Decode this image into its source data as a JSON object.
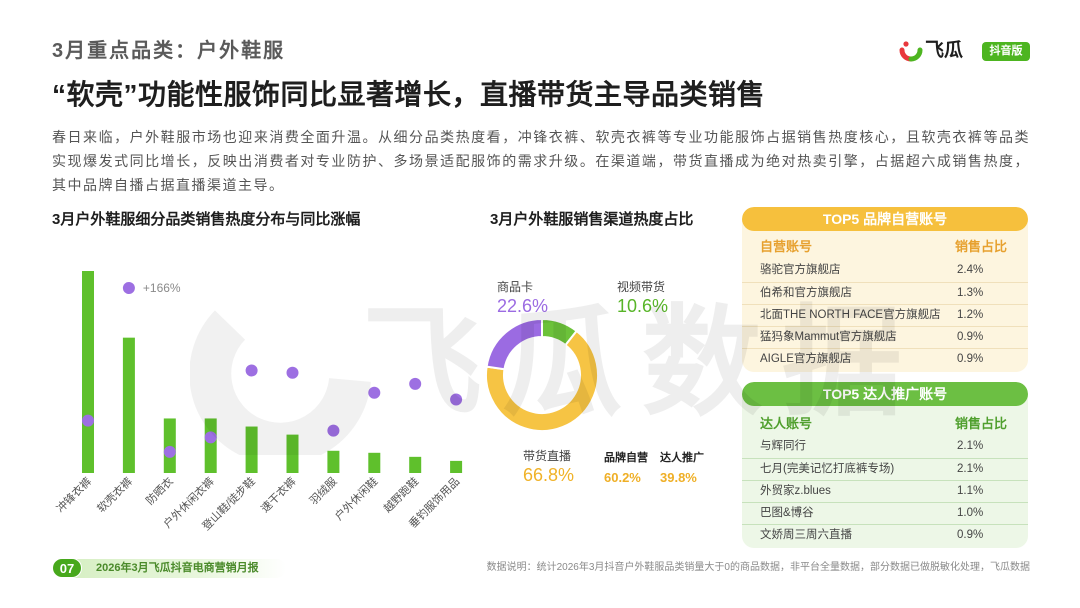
{
  "header": {
    "section": "3月重点品类：户外鞋服",
    "title": "“软壳”功能性服饰同比显著增长，直播带货主导品类销售",
    "summary": "春日来临，户外鞋服市场也迎来消费全面升温。从细分品类热度看，冲锋衣裤、软壳衣裤等专业功能服饰占据销售热度核心，且软壳衣裤等品类实现爆发式同比增长，反映出消费者对专业防护、多场景适配服饰的需求升级。在渠道端，带货直播成为绝对热卖引擎，占据超六成销售热度，其中品牌自播占据直播渠道主导。"
  },
  "logo": {
    "name": "飞瓜",
    "badge": "抖音版",
    "icon": "feigua-logo-icon"
  },
  "watermark": {
    "text": "飞瓜数据",
    "icon": "feigua-logo-icon"
  },
  "colors": {
    "bar": "#5fc02c",
    "dot": "#9d6fe2",
    "brand_accent": "#f6c03d",
    "kol_accent": "#6cbf43",
    "page_badge": "#47a81c"
  },
  "chart_data": [
    {
      "type": "bar",
      "title": "3月户外鞋服细分品类销售热度分布与同比涨幅",
      "categories": [
        "冲锋衣裤",
        "软壳衣裤",
        "防晒衣",
        "户外休闲衣裤",
        "登山鞋/徒步鞋",
        "速干衣裤",
        "羽绒服",
        "户外休闲鞋",
        "越野跑鞋",
        "垂钓服饰用品"
      ],
      "series": [
        {
          "type": "bar",
          "values": [
            100,
            67,
            27,
            27,
            23,
            19,
            11,
            10,
            8,
            6
          ]
        },
        {
          "type": "scatter",
          "values": [
            47,
            166,
            19,
            32,
            92,
            90,
            38,
            72,
            80,
            66
          ],
          "labels": [
            "",
            "+166%",
            "",
            "",
            "",
            "",
            "",
            "",
            "",
            ""
          ]
        }
      ],
      "xlabel": "",
      "ylabel": "",
      "grid": false,
      "legend": "none"
    },
    {
      "type": "pie",
      "title": "3月户外鞋服销售渠道热度占比",
      "donut": true,
      "slices": [
        {
          "label": "视频带货",
          "value": 10.6,
          "display": "10.6%",
          "color": "#6cc23a"
        },
        {
          "label": "带货直播",
          "value": 66.8,
          "display": "66.8%",
          "color": "#f6c444"
        },
        {
          "label": "商品卡",
          "value": 22.6,
          "display": "22.6%",
          "color": "#9b6be2"
        }
      ],
      "breakdown": {
        "parent": "带货直播",
        "items": [
          {
            "label": "品牌自营",
            "value": 60.2,
            "display": "60.2%"
          },
          {
            "label": "达人推广",
            "value": 39.8,
            "display": "39.8%"
          }
        ]
      }
    }
  ],
  "brand_table": {
    "header": "TOP5 品牌自营账号",
    "col_account": "自营账号",
    "col_share": "销售占比",
    "rows": [
      {
        "account": "骆驼官方旗舰店",
        "share": "2.4%"
      },
      {
        "account": "伯希和官方旗舰店",
        "share": "1.3%"
      },
      {
        "account": "北面THE NORTH FACE官方旗舰店",
        "share": "1.2%"
      },
      {
        "account": "猛犸象Mammut官方旗舰店",
        "share": "0.9%"
      },
      {
        "account": "AIGLE官方旗舰店",
        "share": "0.9%"
      }
    ]
  },
  "kol_table": {
    "header": "TOP5 达人推广账号",
    "col_account": "达人账号",
    "col_share": "销售占比",
    "rows": [
      {
        "account": "与辉同行",
        "share": "2.1%"
      },
      {
        "account": "七月(完美记忆打底裤专场)",
        "share": "2.1%"
      },
      {
        "account": "外贸家z.blues",
        "share": "1.1%"
      },
      {
        "account": "巴图&博谷",
        "share": "1.0%"
      },
      {
        "account": "文娇周三周六直播",
        "share": "0.9%"
      }
    ]
  },
  "footer": {
    "page": "07",
    "report": "2026年3月飞瓜抖音电商营销月报",
    "note": "数据说明：统计2026年3月抖音户外鞋服品类销量大于0的商品数据，非平台全量数据，部分数据已做脱敏化处理，飞瓜数据"
  }
}
